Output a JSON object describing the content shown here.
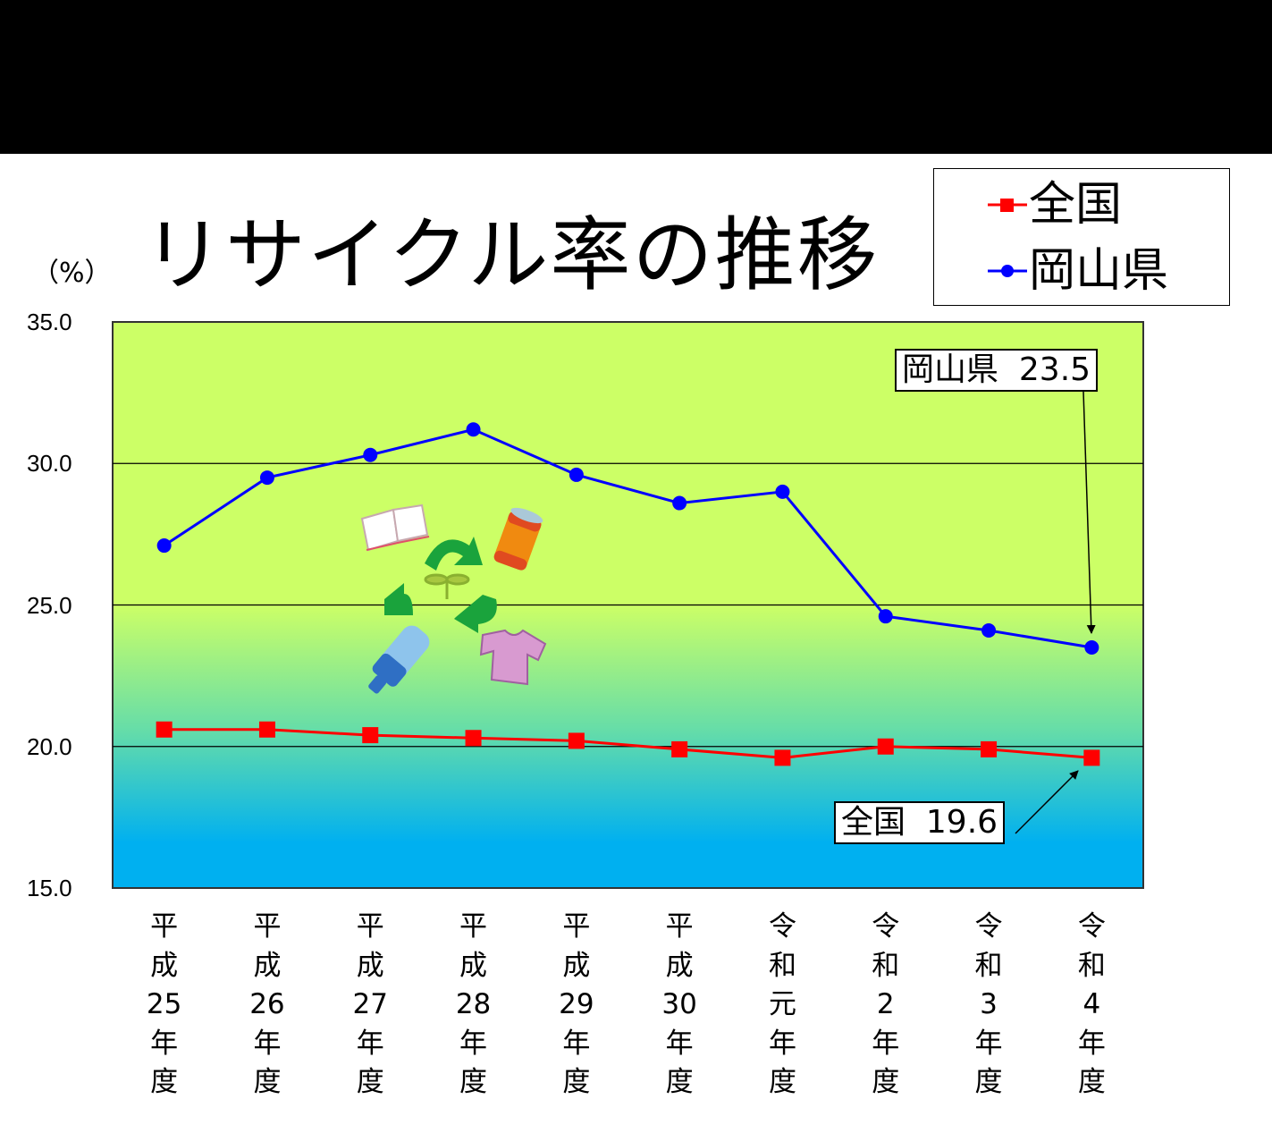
{
  "header": {
    "bar_color": "#000000"
  },
  "title": "リサイクル率の推移",
  "unit_label": "（%）",
  "legend": [
    {
      "label": "全国",
      "color": "#ff0000",
      "marker": "square"
    },
    {
      "label": "岡山県",
      "color": "#0000ff",
      "marker": "circle"
    }
  ],
  "callouts": {
    "okayama": "岡山県  23.5",
    "national": "全国  19.6"
  },
  "decoration": {
    "icon": "recycle-illustration",
    "items": [
      "book-icon",
      "can-icon",
      "bottle-icon",
      "shirt-icon",
      "sprout-icon",
      "recycle-arrows-icon"
    ]
  },
  "background": {
    "top_color": "#ccff66",
    "bottom_color": "#00b0f0"
  },
  "chart_data": {
    "type": "line",
    "title": "リサイクル率の推移",
    "xlabel": "",
    "ylabel": "（%）",
    "ylim": [
      15.0,
      35.0
    ],
    "yticks": [
      "35.0",
      "30.0",
      "25.0",
      "20.0",
      "15.0"
    ],
    "grid": true,
    "legend_position": "top-right",
    "categories": [
      "平成25年度",
      "平成26年度",
      "平成27年度",
      "平成28年度",
      "平成29年度",
      "平成30年度",
      "令和元年度",
      "令和2年度",
      "令和3年度",
      "令和4年度"
    ],
    "category_labels": [
      "平\n成\n25\n年\n度",
      "平\n成\n26\n年\n度",
      "平\n成\n27\n年\n度",
      "平\n成\n28\n年\n度",
      "平\n成\n29\n年\n度",
      "平\n成\n30\n年\n度",
      "令\n和\n元\n年\n度",
      "令\n和\n2\n年\n度",
      "令\n和\n3\n年\n度",
      "令\n和\n4\n年\n度"
    ],
    "series": [
      {
        "name": "全国",
        "color": "#ff0000",
        "marker": "square",
        "values": [
          20.6,
          20.6,
          20.4,
          20.3,
          20.2,
          19.9,
          19.6,
          20.0,
          19.9,
          19.6
        ]
      },
      {
        "name": "岡山県",
        "color": "#0000ff",
        "marker": "circle",
        "values": [
          27.1,
          29.5,
          30.3,
          31.2,
          29.6,
          28.6,
          29.0,
          24.6,
          24.1,
          23.5
        ]
      }
    ],
    "annotations": [
      {
        "text": "岡山県  23.5",
        "series": "岡山県",
        "index": 9
      },
      {
        "text": "全国  19.6",
        "series": "全国",
        "index": 9
      }
    ]
  }
}
